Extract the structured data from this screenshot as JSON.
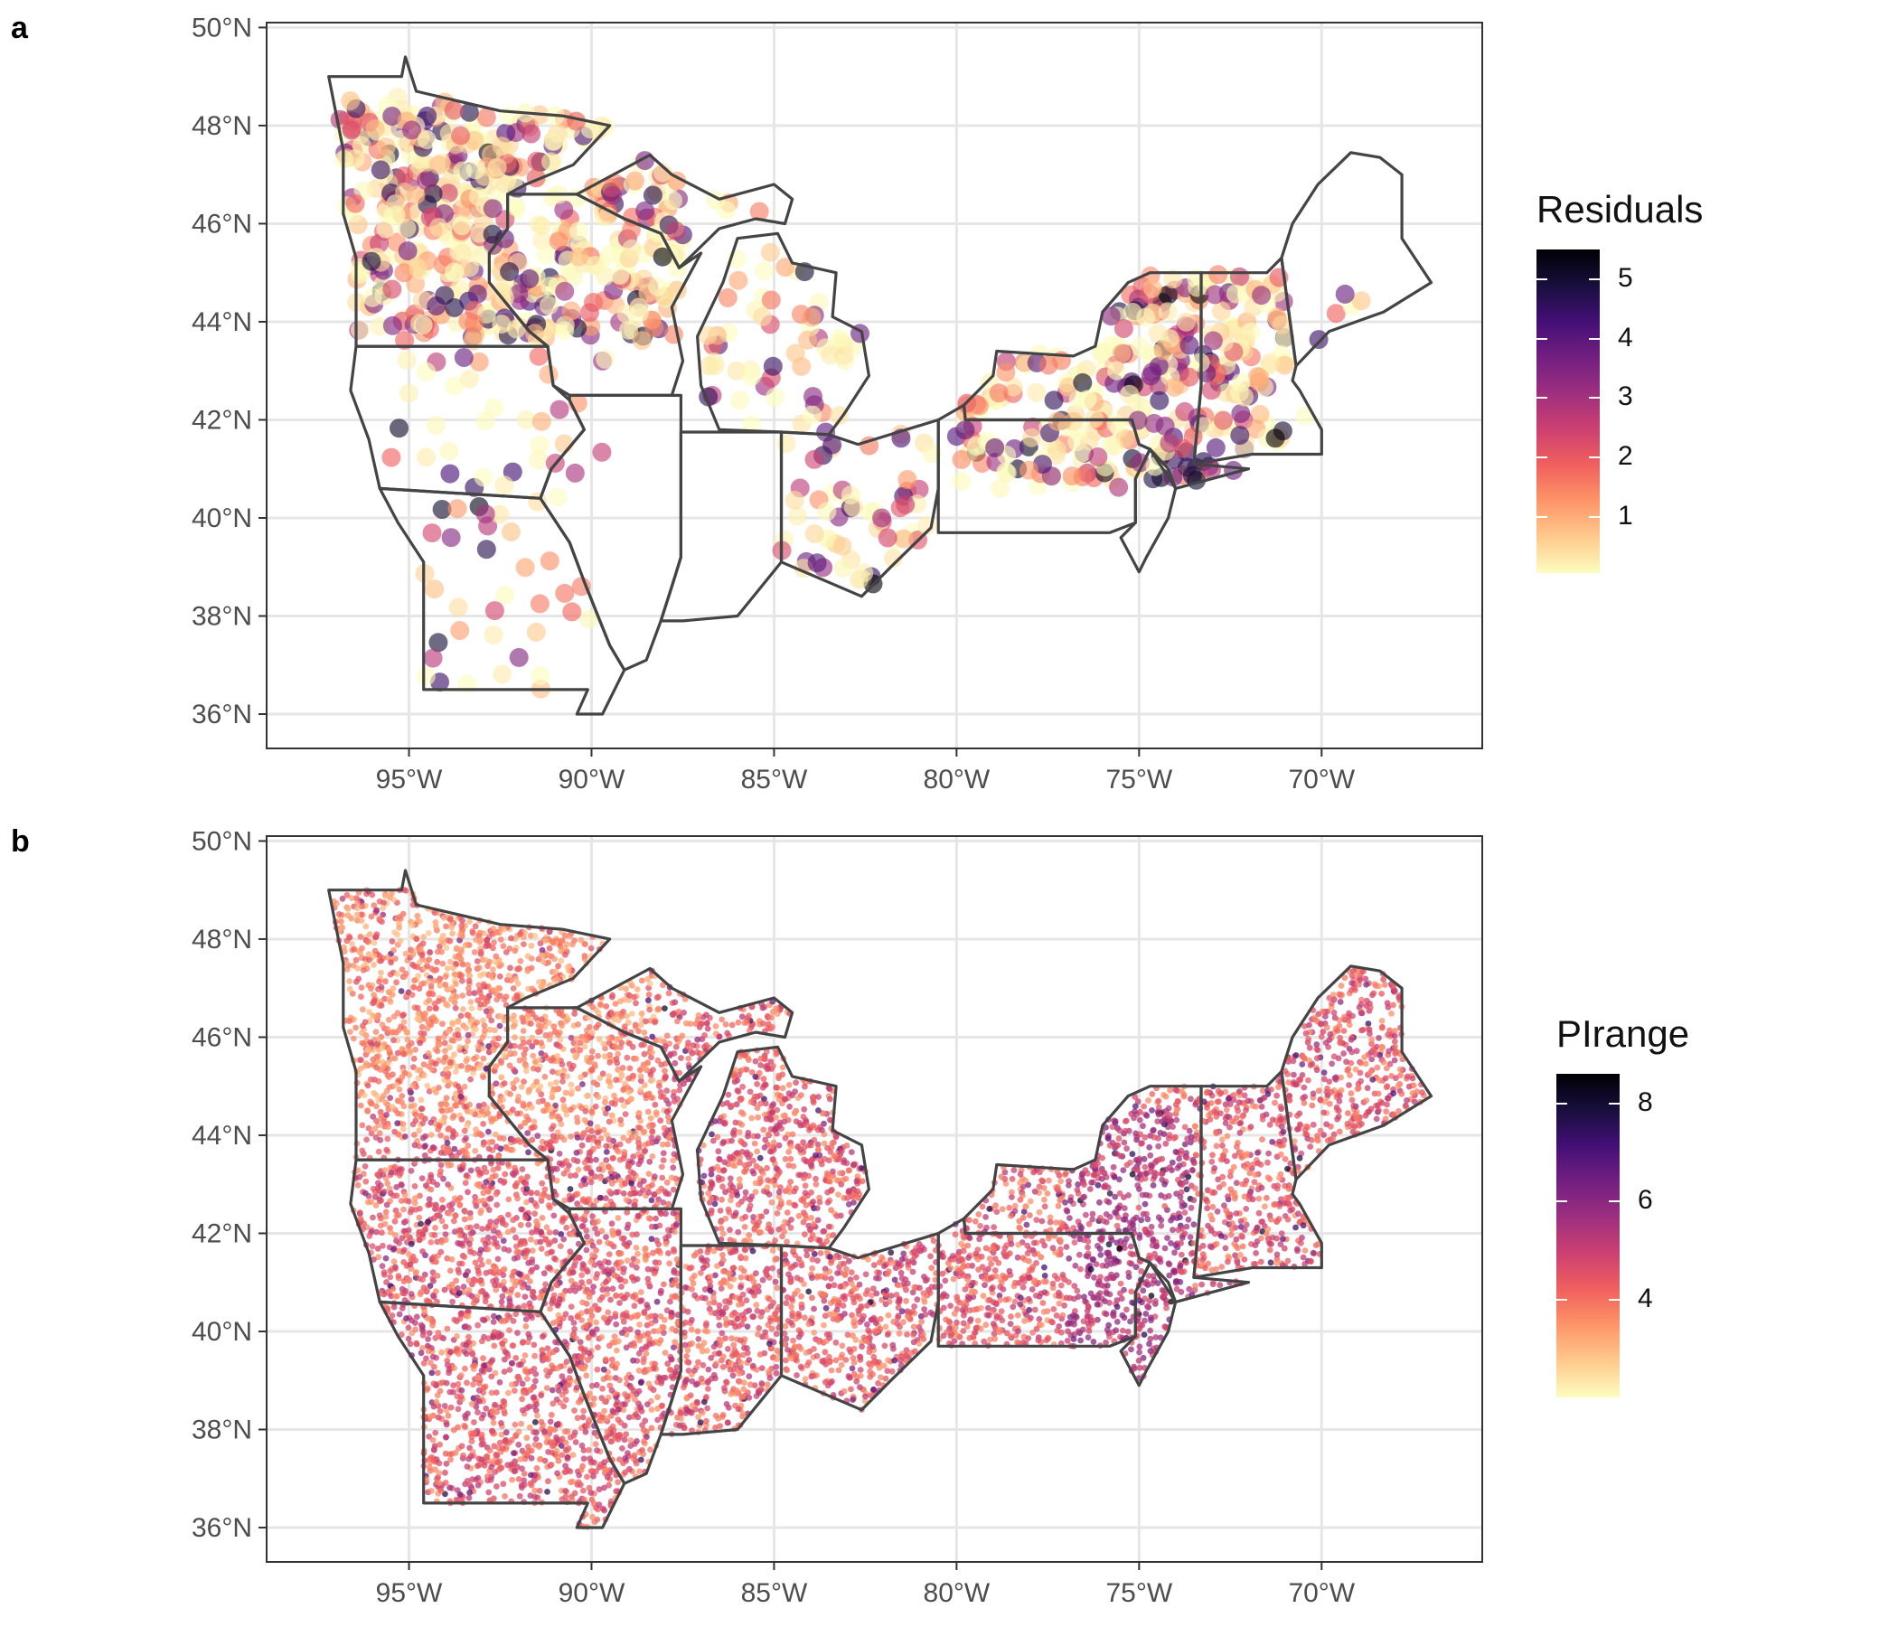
{
  "panels": [
    {
      "id": "a",
      "label": "a",
      "legend_title": "Residuals",
      "legend_ticks": [
        "1",
        "2",
        "3",
        "4",
        "5"
      ],
      "legend_range": [
        0.05,
        5.5
      ],
      "point_style": "large-transparent-circles"
    },
    {
      "id": "b",
      "label": "b",
      "legend_title": "PIrange",
      "legend_ticks": [
        "4",
        "6",
        "8"
      ],
      "legend_range": [
        2.0,
        8.6
      ],
      "point_style": "dense-small-points"
    }
  ],
  "axes": {
    "x_ticks": [
      "95°W",
      "90°W",
      "85°W",
      "80°W",
      "75°W",
      "70°W"
    ],
    "x_values": [
      -95,
      -90,
      -85,
      -80,
      -75,
      -70
    ],
    "y_ticks": [
      "36°N",
      "38°N",
      "40°N",
      "42°N",
      "44°N",
      "46°N",
      "48°N",
      "50°N"
    ],
    "y_values": [
      36,
      38,
      40,
      42,
      44,
      46,
      48,
      50
    ],
    "xlim": [
      -98.9,
      -65.6
    ],
    "ylim": [
      35.3,
      50.1
    ]
  },
  "colormap": "magma-reversed",
  "colors": {
    "panel_border": "#333333",
    "grid": "#e6e6e6",
    "state_outline": "#444444",
    "colormap_stops": [
      "#fcfdbf",
      "#feca8d",
      "#fd9668",
      "#f1605d",
      "#cd4071",
      "#9e2f7f",
      "#721f81",
      "#440f76",
      "#180f3d",
      "#000004"
    ]
  }
}
